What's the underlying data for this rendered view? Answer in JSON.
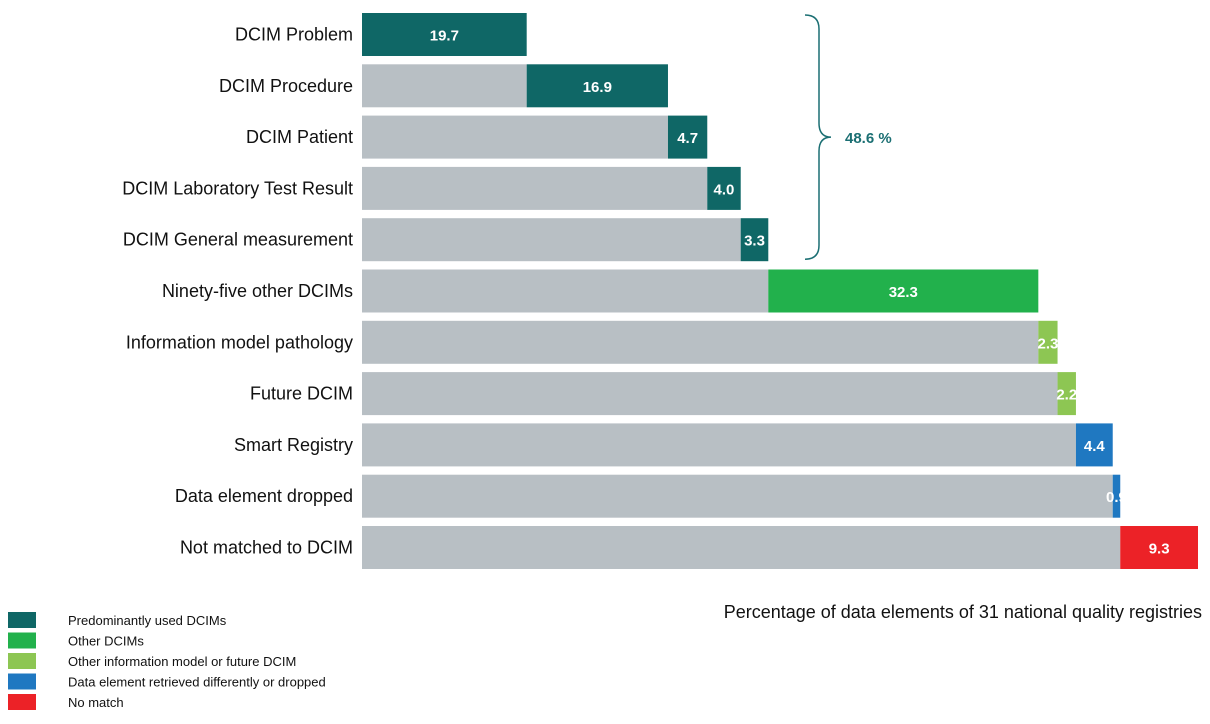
{
  "colors": {
    "background_bar": "#b8bfc4",
    "predominant": "#0f6766",
    "other_dcims": "#22b14c",
    "other_model": "#8dc653",
    "retrieved": "#1f78c1",
    "no_match": "#ec2227",
    "brace": "#1b6f73"
  },
  "chart_data": {
    "type": "bar",
    "subtype": "waterfall-horizontal",
    "xlabel": "Percentage of data elements of 31 national quality registries",
    "total": 100,
    "categories": [
      "DCIM Problem",
      "DCIM Procedure",
      "DCIM Patient",
      "DCIM Laboratory Test Result",
      "DCIM General measurement",
      "Ninety-five other DCIMs",
      "Information model pathology",
      "Future DCIM",
      "Smart Registry",
      "Data element dropped",
      "Not matched to DCIM"
    ],
    "values": [
      19.7,
      16.9,
      4.7,
      4.0,
      3.3,
      32.3,
      2.3,
      2.2,
      4.4,
      0.9,
      9.3
    ],
    "value_labels": [
      "19.7",
      "16.9",
      "4.7",
      "4.0",
      "3.3",
      "32.3",
      "2.3",
      "2.2",
      "4.4",
      "0.9",
      "9.3"
    ],
    "groups": [
      "predominant",
      "predominant",
      "predominant",
      "predominant",
      "predominant",
      "other_dcims",
      "other_model",
      "other_model",
      "retrieved",
      "retrieved",
      "no_match"
    ],
    "brace": {
      "from_index": 0,
      "to_index": 4,
      "label": "48.6 %"
    },
    "legend": [
      {
        "group": "predominant",
        "label": "Predominantly used DCIMs"
      },
      {
        "group": "other_dcims",
        "label": "Other DCIMs"
      },
      {
        "group": "other_model",
        "label": "Other information model or future DCIM"
      },
      {
        "group": "retrieved",
        "label": "Data element retrieved differently or dropped"
      },
      {
        "group": "no_match",
        "label": "No match"
      }
    ],
    "grid": false,
    "legend_position": "bottom-left"
  }
}
